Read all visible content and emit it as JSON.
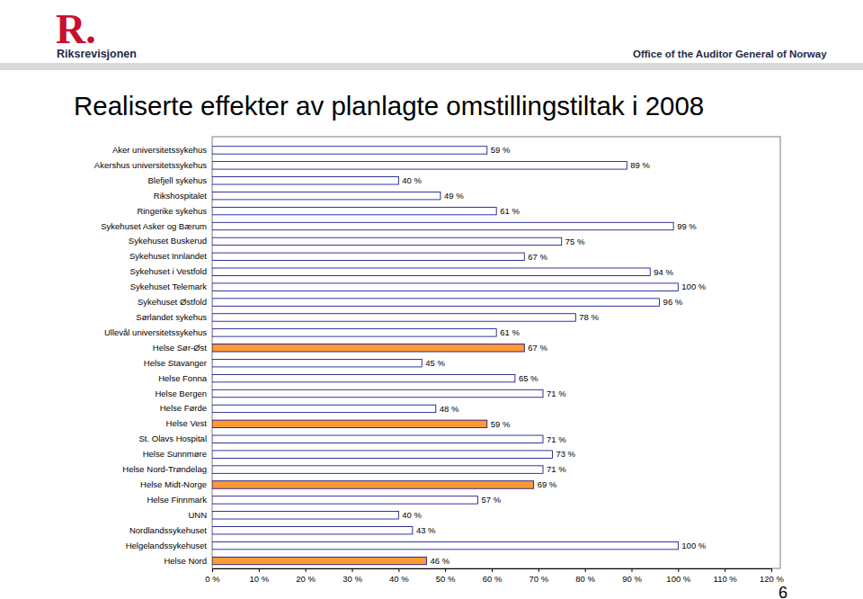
{
  "page": {
    "logo": "R.",
    "organization": "Riksrevisjonen",
    "organization_en": "Office of the Auditor General of Norway",
    "page_number": "6"
  },
  "chart_data": {
    "type": "bar",
    "orientation": "horizontal",
    "title": "Realiserte effekter av planlagte omstillingstiltak i 2008",
    "categories": [
      "Aker universitetssykehus",
      "Akershus universitetssykehus",
      "Blefjell sykehus",
      "Rikshospitalet",
      "Ringerike sykehus",
      "Sykehuset Asker og Bærum",
      "Sykehuset Buskerud",
      "Sykehuset Innlandet",
      "Sykehuset i Vestfold",
      "Sykehuset Telemark",
      "Sykehuset Østfold",
      "Sørlandet sykehus",
      "Ullevål universitetssykehus",
      "Helse Sør-Øst",
      "Helse Stavanger",
      "Helse Fonna",
      "Helse Bergen",
      "Helse Førde",
      "Helse Vest",
      "St. Olavs Hospital",
      "Helse Sunnmøre",
      "Helse Nord-Trøndelag",
      "Helse Midt-Norge",
      "Helse Finnmark",
      "UNN",
      "Nordlandssykehuset",
      "Helgelandssykehuset",
      "Helse Nord"
    ],
    "values": [
      59,
      89,
      40,
      49,
      61,
      99,
      75,
      67,
      94,
      100,
      96,
      78,
      61,
      67,
      45,
      65,
      71,
      48,
      59,
      71,
      73,
      71,
      69,
      57,
      40,
      43,
      100,
      46
    ],
    "value_labels": [
      "59 %",
      "89 %",
      "40 %",
      "49 %",
      "61 %",
      "99 %",
      "75 %",
      "67 %",
      "94 %",
      "100 %",
      "96 %",
      "78 %",
      "61 %",
      "67 %",
      "45 %",
      "65 %",
      "71 %",
      "48 %",
      "59 %",
      "71 %",
      "73 %",
      "71 %",
      "69 %",
      "57 %",
      "40 %",
      "43 %",
      "100 %",
      "46 %"
    ],
    "colors": [
      "#ffffff",
      "#ffffff",
      "#ffffff",
      "#ffffff",
      "#ffffff",
      "#ffffff",
      "#ffffff",
      "#ffffff",
      "#ffffff",
      "#ffffff",
      "#ffffff",
      "#ffffff",
      "#ffffff",
      "#ff9933",
      "#ffffff",
      "#ffffff",
      "#ffffff",
      "#ffffff",
      "#ff9933",
      "#ffffff",
      "#ffffff",
      "#ffffff",
      "#ff9933",
      "#ffffff",
      "#ffffff",
      "#ffffff",
      "#ffffff",
      "#ff9933"
    ],
    "xlim": [
      0,
      120
    ],
    "xticks": [
      {
        "value": 0,
        "label": "0 %"
      },
      {
        "value": 10,
        "label": "10 %"
      },
      {
        "value": 20,
        "label": "20 %"
      },
      {
        "value": 30,
        "label": "30 %"
      },
      {
        "value": 40,
        "label": "40 %"
      },
      {
        "value": 50,
        "label": "50 %"
      },
      {
        "value": 60,
        "label": "60 %"
      },
      {
        "value": 70,
        "label": "70 %"
      },
      {
        "value": 80,
        "label": "80 %"
      },
      {
        "value": 90,
        "label": "90 %"
      },
      {
        "value": 100,
        "label": "100 %"
      },
      {
        "value": 110,
        "label": "110 %"
      },
      {
        "value": 120,
        "label": "120 %"
      }
    ],
    "data_labels": true,
    "grid": false
  }
}
